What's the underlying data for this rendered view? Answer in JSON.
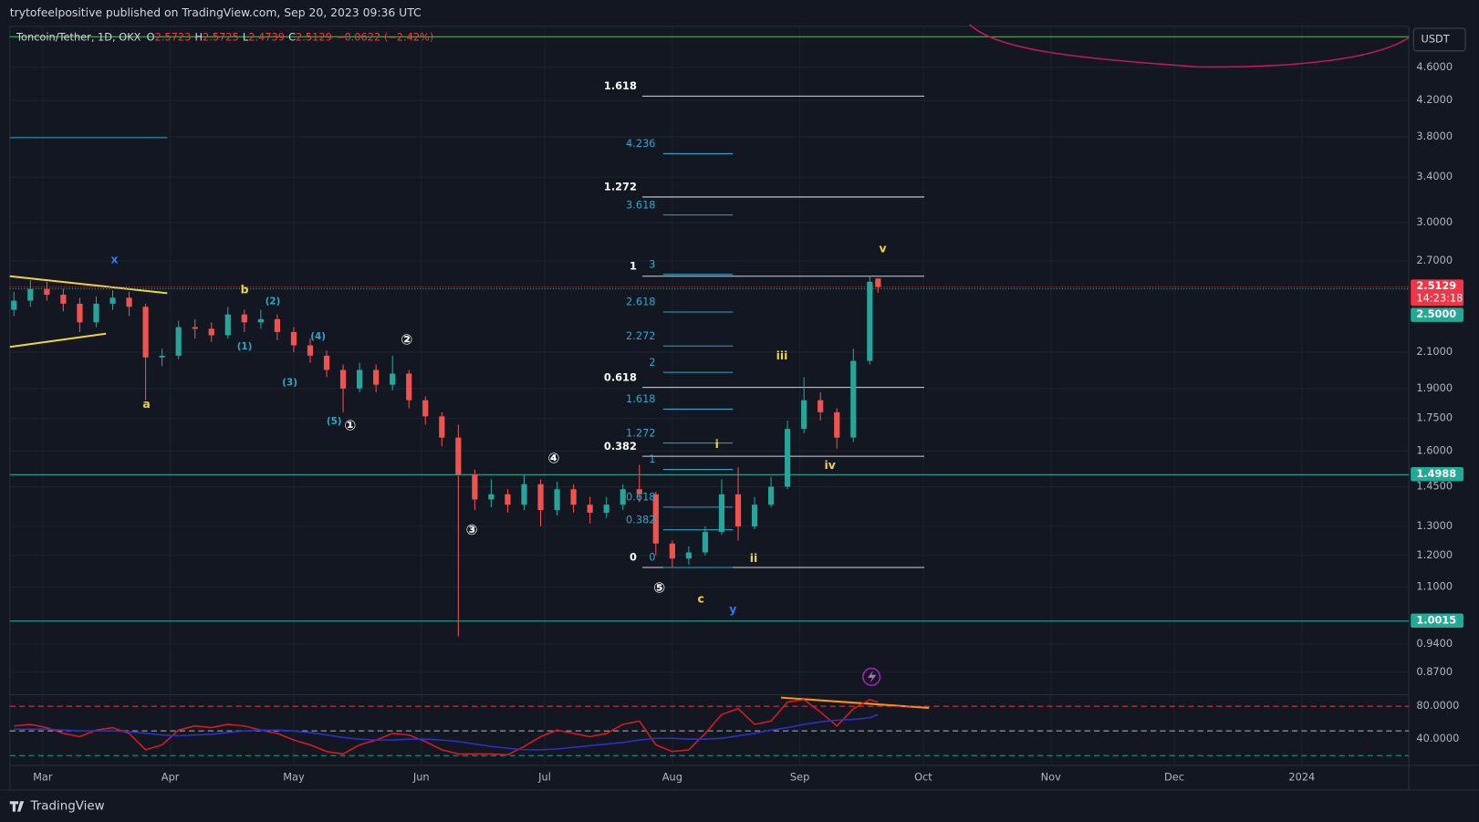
{
  "header": {
    "publisher": "trytofeelpositive published on TradingView.com, Sep 20, 2023 09:36 UTC"
  },
  "legend": {
    "symbol": "Toncoin/Tether, 1D, OKX",
    "ohlc": [
      {
        "key": "O",
        "value": 2.5723
      },
      {
        "key": "H",
        "value": 2.5725
      },
      {
        "key": "L",
        "value": 2.4739
      },
      {
        "key": "C",
        "value": 2.5129
      }
    ],
    "change": "−0.0622 (−2.42%)"
  },
  "currency": "USDT",
  "footer": {
    "brand": "TradingView"
  },
  "chart_data": [
    {
      "type": "candlestick",
      "x": [
        "2023-02-22",
        "2023-02-26",
        "2023-03-02",
        "2023-03-06",
        "2023-03-10",
        "2023-03-14",
        "2023-03-18",
        "2023-03-22",
        "2023-03-26",
        "2023-03-30",
        "2023-04-03",
        "2023-04-07",
        "2023-04-11",
        "2023-04-15",
        "2023-04-19",
        "2023-04-23",
        "2023-04-27",
        "2023-05-01",
        "2023-05-05",
        "2023-05-09",
        "2023-05-13",
        "2023-05-17",
        "2023-05-21",
        "2023-05-25",
        "2023-05-29",
        "2023-06-02",
        "2023-06-06",
        "2023-06-10",
        "2023-06-14",
        "2023-06-18",
        "2023-06-22",
        "2023-06-26",
        "2023-06-30",
        "2023-07-04",
        "2023-07-08",
        "2023-07-12",
        "2023-07-16",
        "2023-07-20",
        "2023-07-24",
        "2023-07-28",
        "2023-08-01",
        "2023-08-05",
        "2023-08-09",
        "2023-08-13",
        "2023-08-17",
        "2023-08-21",
        "2023-08-25",
        "2023-08-29",
        "2023-09-02",
        "2023-09-06",
        "2023-09-10",
        "2023-09-14",
        "2023-09-18",
        "2023-09-20"
      ],
      "open": [
        2.36,
        2.42,
        2.5,
        2.46,
        2.4,
        2.28,
        2.4,
        2.44,
        2.38,
        2.07,
        2.08,
        2.25,
        2.24,
        2.2,
        2.33,
        2.28,
        2.3,
        2.22,
        2.14,
        2.08,
        2.0,
        1.9,
        2.0,
        1.92,
        1.98,
        1.84,
        1.76,
        1.66,
        1.5,
        1.4,
        1.42,
        1.38,
        1.46,
        1.36,
        1.44,
        1.38,
        1.35,
        1.38,
        1.44,
        1.42,
        1.24,
        1.19,
        1.21,
        1.28,
        1.42,
        1.3,
        1.38,
        1.45,
        1.7,
        1.84,
        1.78,
        1.66,
        2.05,
        2.5723
      ],
      "high": [
        2.48,
        2.56,
        2.55,
        2.5,
        2.44,
        2.45,
        2.49,
        2.48,
        2.4,
        2.12,
        2.29,
        2.3,
        2.28,
        2.38,
        2.36,
        2.36,
        2.33,
        2.25,
        2.18,
        2.11,
        2.03,
        2.04,
        2.03,
        2.08,
        2.0,
        1.86,
        1.78,
        1.72,
        1.52,
        1.48,
        1.44,
        1.5,
        1.48,
        1.47,
        1.46,
        1.41,
        1.41,
        1.46,
        1.54,
        1.43,
        1.25,
        1.23,
        1.3,
        1.48,
        1.53,
        1.41,
        1.49,
        1.74,
        1.96,
        1.88,
        1.8,
        2.12,
        2.59,
        2.5725
      ],
      "low": [
        2.32,
        2.38,
        2.42,
        2.35,
        2.22,
        2.25,
        2.36,
        2.32,
        1.84,
        2.02,
        2.06,
        2.18,
        2.16,
        2.18,
        2.22,
        2.24,
        2.17,
        2.1,
        2.04,
        1.96,
        1.78,
        1.88,
        1.88,
        1.89,
        1.8,
        1.72,
        1.62,
        0.96,
        1.36,
        1.37,
        1.35,
        1.36,
        1.3,
        1.34,
        1.35,
        1.31,
        1.33,
        1.36,
        1.39,
        1.2,
        1.16,
        1.17,
        1.2,
        1.27,
        1.25,
        1.29,
        1.37,
        1.44,
        1.68,
        1.74,
        1.61,
        1.64,
        2.03,
        2.4739
      ],
      "close": [
        2.42,
        2.5,
        2.46,
        2.4,
        2.28,
        2.4,
        2.44,
        2.38,
        2.07,
        2.08,
        2.25,
        2.24,
        2.2,
        2.33,
        2.28,
        2.3,
        2.22,
        2.14,
        2.08,
        2.0,
        1.9,
        2.0,
        1.92,
        1.98,
        1.84,
        1.76,
        1.66,
        1.5,
        1.4,
        1.42,
        1.38,
        1.46,
        1.36,
        1.44,
        1.38,
        1.35,
        1.38,
        1.44,
        1.42,
        1.24,
        1.19,
        1.21,
        1.28,
        1.42,
        1.3,
        1.38,
        1.45,
        1.7,
        1.84,
        1.78,
        1.66,
        2.05,
        2.55,
        2.5129
      ],
      "up_color": "#26a69a",
      "down_color": "#ef5350",
      "log_scale": true,
      "ylim": [
        0.822,
        5.15
      ],
      "yticks": [
        {
          "value": 4.6,
          "label": "4.6000"
        },
        {
          "value": 4.2,
          "label": "4.2000"
        },
        {
          "value": 3.8,
          "label": "3.8000"
        },
        {
          "value": 3.4,
          "label": "3.4000"
        },
        {
          "value": 3.0,
          "label": "3.0000"
        },
        {
          "value": 2.7,
          "label": "2.7000"
        },
        {
          "value": 2.1,
          "label": "2.1000"
        },
        {
          "value": 1.9,
          "label": "1.9000"
        },
        {
          "value": 1.75,
          "label": "1.7500"
        },
        {
          "value": 1.6,
          "label": "1.6000"
        },
        {
          "value": 1.45,
          "label": "1.4500"
        },
        {
          "value": 1.3,
          "label": "1.3000"
        },
        {
          "value": 1.2,
          "label": "1.2000"
        },
        {
          "value": 1.1,
          "label": "1.1000"
        },
        {
          "value": 0.94,
          "label": "0.9400"
        },
        {
          "value": 0.87,
          "label": "0.8700"
        }
      ],
      "xlim": [
        "2023-02-21",
        "2024-01-27"
      ],
      "xticks": [
        {
          "value": "2023-03-01",
          "label": "Mar"
        },
        {
          "value": "2023-04-01",
          "label": "Apr"
        },
        {
          "value": "2023-05-01",
          "label": "May"
        },
        {
          "value": "2023-06-01",
          "label": "Jun"
        },
        {
          "value": "2023-07-01",
          "label": "Jul"
        },
        {
          "value": "2023-08-01",
          "label": "Aug"
        },
        {
          "value": "2023-09-01",
          "label": "Sep"
        },
        {
          "value": "2023-10-01",
          "label": "Oct"
        },
        {
          "value": "2023-11-01",
          "label": "Nov"
        },
        {
          "value": "2023-12-01",
          "label": "Dec"
        },
        {
          "value": "2024-01-01",
          "label": "2024"
        }
      ],
      "grid": true,
      "price_tags": [
        {
          "value": 2.5129,
          "label": "2.5129",
          "countdown": "14:23:18",
          "color": "#f23645",
          "line": "dotted"
        },
        {
          "value": 2.5,
          "label": "2.5000",
          "color": "#22ab94",
          "line": "dotted"
        },
        {
          "value": 1.4988,
          "label": "1.4988",
          "color": "#22ab94",
          "line": "solid"
        },
        {
          "value": 1.0015,
          "label": "1.0015",
          "color": "#22ab94",
          "line": "solid"
        }
      ],
      "fib_white": [
        "1.618",
        "1.272",
        "1",
        "0.618",
        "0.382",
        "0"
      ],
      "fib_cyan": [
        "4.236",
        "3.618",
        "3",
        "2.618",
        "2.272",
        "2",
        "1.618",
        "1.272",
        "1",
        "0.618",
        "0.382",
        "0"
      ],
      "wave_labels": [
        "x",
        "b",
        "(2)",
        "(4)",
        "(1)",
        "(3)",
        "(5)",
        "a",
        "②",
        "①",
        "④",
        "③",
        "⑤",
        "i",
        "ii",
        "iii",
        "iv",
        "v",
        "c",
        "y"
      ]
    },
    {
      "type": "line",
      "x": [
        "2023-02-22",
        "2023-02-26",
        "2023-03-02",
        "2023-03-06",
        "2023-03-10",
        "2023-03-14",
        "2023-03-18",
        "2023-03-22",
        "2023-03-26",
        "2023-03-30",
        "2023-04-03",
        "2023-04-07",
        "2023-04-11",
        "2023-04-15",
        "2023-04-19",
        "2023-04-23",
        "2023-04-27",
        "2023-05-01",
        "2023-05-05",
        "2023-05-09",
        "2023-05-13",
        "2023-05-17",
        "2023-05-21",
        "2023-05-25",
        "2023-05-29",
        "2023-06-02",
        "2023-06-06",
        "2023-06-10",
        "2023-06-14",
        "2023-06-18",
        "2023-06-22",
        "2023-06-26",
        "2023-06-30",
        "2023-07-04",
        "2023-07-08",
        "2023-07-12",
        "2023-07-16",
        "2023-07-20",
        "2023-07-24",
        "2023-07-28",
        "2023-08-01",
        "2023-08-05",
        "2023-08-09",
        "2023-08-13",
        "2023-08-17",
        "2023-08-21",
        "2023-08-25",
        "2023-08-29",
        "2023-09-02",
        "2023-09-06",
        "2023-09-10",
        "2023-09-14",
        "2023-09-18",
        "2023-09-20"
      ],
      "series": [
        {
          "color": "#d81b23",
          "values": [
            56,
            58,
            54,
            47,
            43,
            51,
            54,
            47,
            27,
            33,
            51,
            56,
            54,
            58,
            56,
            51,
            47,
            39,
            33,
            25,
            22,
            33,
            39,
            47,
            45,
            37,
            27,
            22,
            22,
            22,
            21,
            31,
            43,
            51,
            47,
            43,
            47,
            58,
            62,
            33,
            25,
            27,
            47,
            70,
            77,
            58,
            62,
            85,
            88,
            73,
            56,
            77,
            88,
            85
          ]
        },
        {
          "color": "#2b32c7",
          "values": [
            52,
            52,
            52,
            51,
            50,
            50,
            50,
            49,
            47,
            45,
            44,
            45,
            46,
            48,
            50,
            51,
            51,
            50,
            48,
            45,
            42,
            40,
            39,
            39,
            40,
            40,
            39,
            37,
            34,
            31,
            29,
            27,
            27,
            28,
            30,
            32,
            34,
            36,
            39,
            41,
            41,
            40,
            40,
            41,
            44,
            47,
            51,
            54,
            58,
            61,
            63,
            64,
            66,
            70
          ]
        }
      ],
      "ylim": [
        8,
        94
      ],
      "yticks": [
        {
          "value": 80,
          "label": "80.0000"
        },
        {
          "value": 40,
          "label": "40.0000"
        }
      ],
      "levels": [
        {
          "value": 80,
          "color": "#f23645"
        },
        {
          "value": 50,
          "color": "#b2b5be"
        },
        {
          "value": 20,
          "color": "#089981"
        }
      ],
      "xlim": [
        "2023-02-21",
        "2024-01-27"
      ]
    }
  ]
}
